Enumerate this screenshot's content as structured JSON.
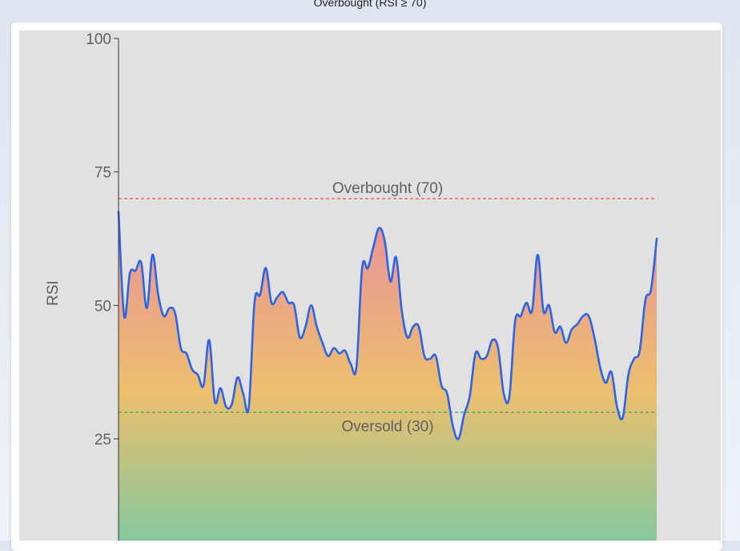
{
  "page": {
    "header_text": "Overbought (RSI ≥ 70)"
  },
  "colors": {
    "plot_bg": "#e1e1e1",
    "line": "#2f63e6",
    "overbought": "#e05a5a",
    "oversold": "#3fb35a",
    "grad_top": "#e9919a",
    "grad_mid": "#ecbf6e",
    "grad_bottom": "#86c89d",
    "text": "#606060"
  },
  "chart_data": {
    "type": "line",
    "ylabel": "RSI",
    "xlabel": "",
    "ylim": [
      0,
      100
    ],
    "yticks": [
      25,
      50,
      75,
      100
    ],
    "ytick_labels": [
      "25",
      "50",
      "75",
      "100"
    ],
    "grid": false,
    "thresholds": [
      {
        "name": "overbought",
        "label": "Overbought (70)",
        "value": 70
      },
      {
        "name": "oversold",
        "label": "Oversold (30)",
        "value": 30
      }
    ],
    "series": [
      {
        "values": [
          67.5,
          48,
          56,
          56.5,
          58,
          49.5,
          59.5,
          52,
          48,
          49.5,
          48.5,
          42,
          41,
          38,
          37,
          35,
          43.5,
          32,
          34.5,
          31,
          31.5,
          36.5,
          33.5,
          31,
          50.5,
          52,
          57,
          50.5,
          51.5,
          52.5,
          50.5,
          50,
          44,
          46,
          50,
          46,
          43,
          40.5,
          42,
          41,
          41.5,
          39,
          38.5,
          57,
          57,
          61,
          64.5,
          62,
          54.5,
          59,
          49,
          44,
          46,
          46,
          40.5,
          40,
          40.5,
          35,
          33.5,
          27.5,
          25,
          29.5,
          33,
          41,
          40,
          40.5,
          43.5,
          42,
          33.5,
          33,
          47,
          48,
          50.5,
          49,
          59.5,
          49,
          50,
          45,
          46,
          43,
          45.5,
          46.5,
          48,
          48,
          44,
          38.5,
          35.5,
          37.5,
          31,
          29,
          37,
          40,
          41.5,
          51,
          53,
          62.5
        ]
      }
    ]
  }
}
